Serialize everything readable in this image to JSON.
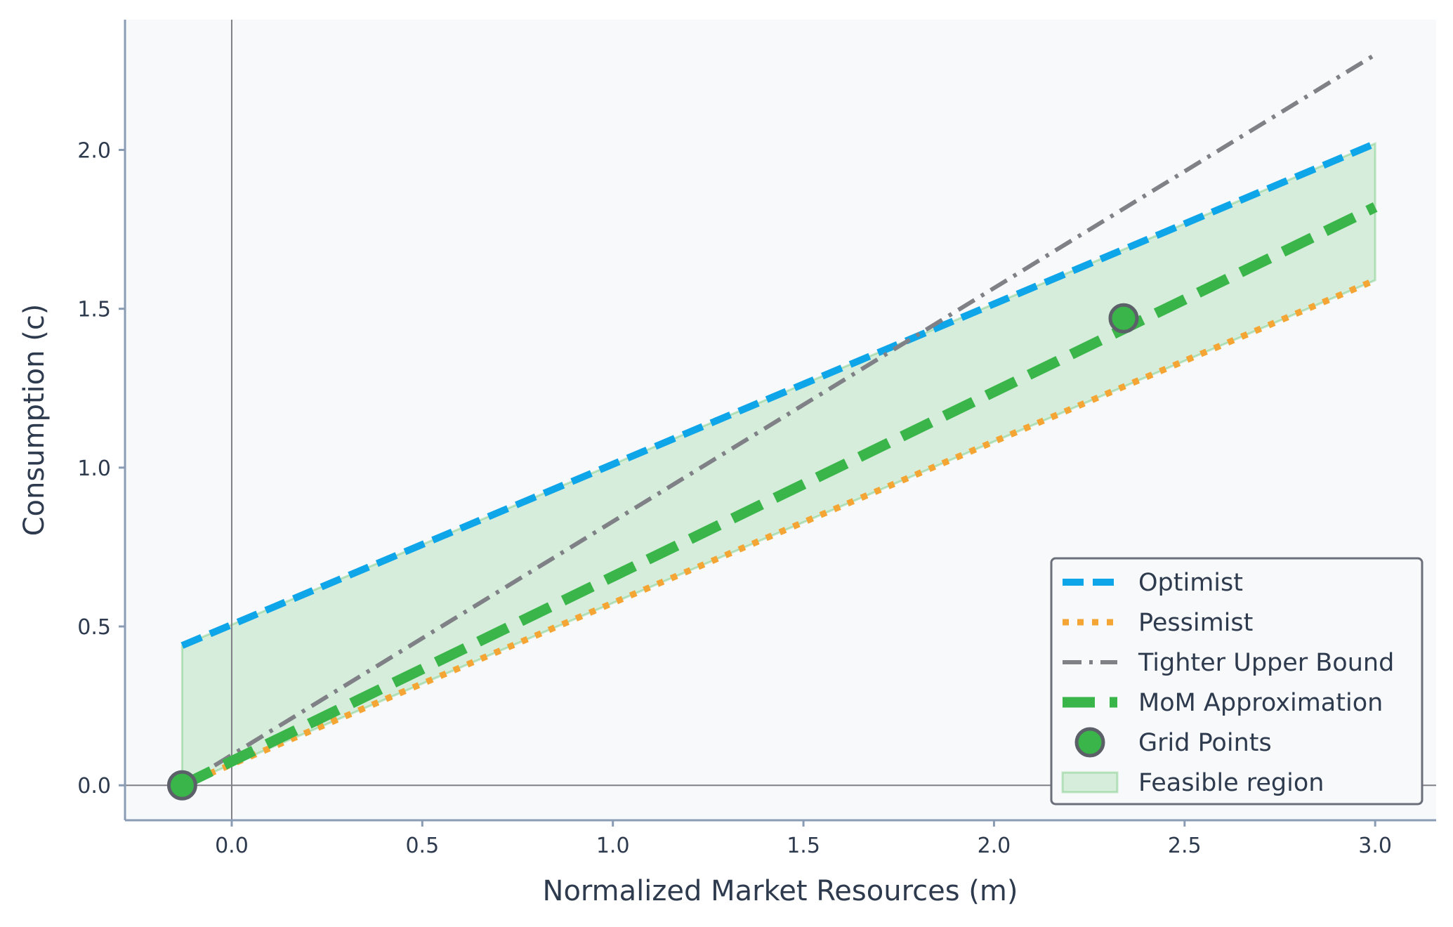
{
  "chart_data": {
    "type": "line",
    "xlabel": "Normalized Market Resources (m)",
    "ylabel": "Consumption (c)",
    "xlim": [
      -0.28,
      3.16
    ],
    "ylim": [
      -0.11,
      2.41
    ],
    "xticks": [
      0.0,
      0.5,
      1.0,
      1.5,
      2.0,
      2.5,
      3.0
    ],
    "xtick_labels": [
      "0.0",
      "0.5",
      "1.0",
      "1.5",
      "2.0",
      "2.5",
      "3.0"
    ],
    "yticks": [
      0.0,
      0.5,
      1.0,
      1.5,
      2.0
    ],
    "ytick_labels": [
      "0.0",
      "0.5",
      "1.0",
      "1.5",
      "2.0"
    ],
    "reference_lines": {
      "x": 0,
      "y": 0
    },
    "grid": false,
    "legend_position": "lower right",
    "series": [
      {
        "name": "Optimist",
        "style": "dashed",
        "color": "#0ea5e9",
        "x": [
          -0.13,
          3.0
        ],
        "y": [
          0.44,
          2.02
        ]
      },
      {
        "name": "Pessimist",
        "style": "dotted",
        "color": "#f4a534",
        "x": [
          -0.13,
          3.0
        ],
        "y": [
          0.0,
          1.59
        ]
      },
      {
        "name": "Tighter Upper Bound",
        "style": "dashdot",
        "color": "#808087",
        "x": [
          -0.13,
          3.0
        ],
        "y": [
          0.0,
          2.3
        ]
      },
      {
        "name": "MoM Approximation",
        "style": "dashed-thick",
        "color": "#3ab54a",
        "x": [
          -0.13,
          3.0
        ],
        "y": [
          0.0,
          1.82
        ]
      },
      {
        "name": "Grid Points",
        "style": "marker",
        "color": "#3ab54a",
        "x": [
          -0.13,
          2.34
        ],
        "y": [
          0.0,
          1.47
        ]
      }
    ],
    "fill_region": {
      "name": "Feasible region",
      "color": "#3ab54a",
      "alpha": 0.18,
      "x": [
        -0.13,
        3.0
      ],
      "y_lower": [
        0.0,
        1.59
      ],
      "y_upper": [
        0.44,
        2.02
      ]
    }
  }
}
